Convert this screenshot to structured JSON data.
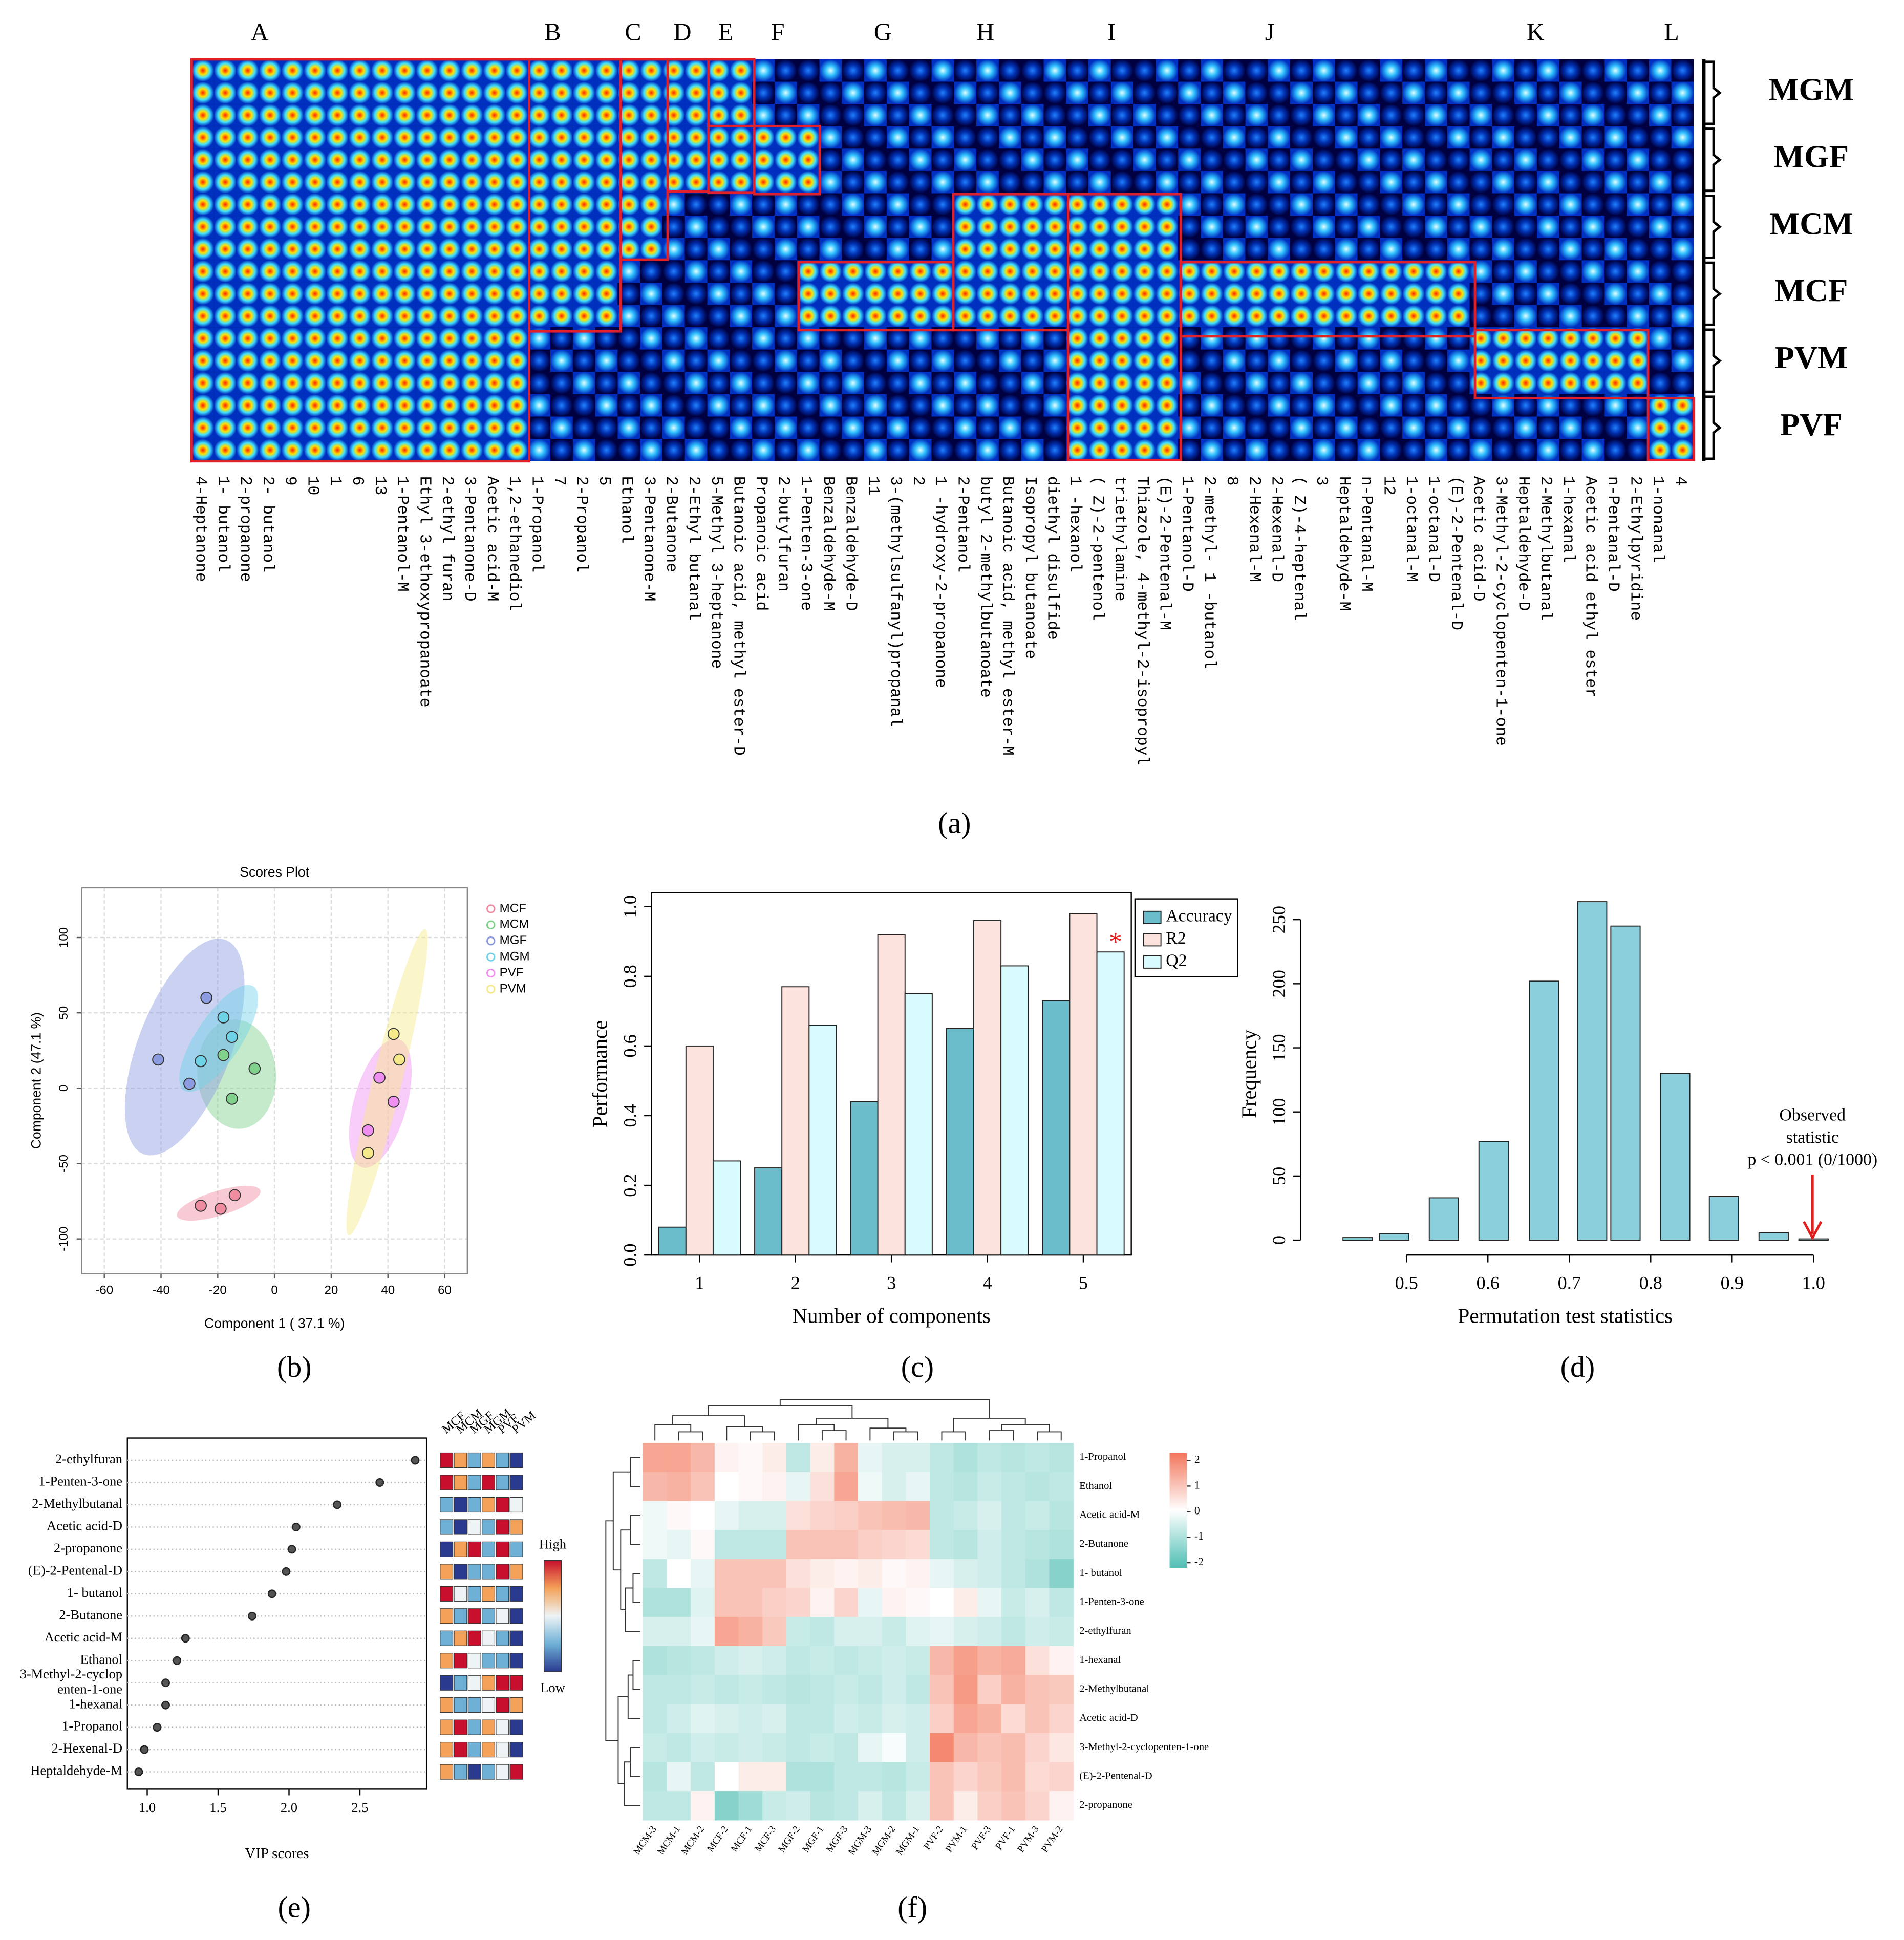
{
  "chart_data": [
    {
      "type": "gallery",
      "panel_label": "(a)",
      "group_letters": [
        "A",
        "B",
        "C",
        "D",
        "E",
        "F",
        "G",
        "H",
        "I",
        "J",
        "K",
        "L"
      ],
      "row_groups": [
        "MGM",
        "MGF",
        "MCM",
        "MCF",
        "PVM",
        "PVF"
      ],
      "columns": [
        "4-Heptanone",
        "1- butanol",
        "2-propanone",
        "2- butanol",
        "9",
        "10",
        "1",
        "6",
        "13",
        "1-Pentanol-M",
        "Ethyl 3-ethoxypropanoate",
        "2-ethyl furan",
        "3-Pentanone-D",
        "Acetic acid-M",
        "1,2-ethanediol",
        "1-Propanol",
        "7",
        "2-Propanol",
        "5",
        "Ethanol",
        "3-Pentanone-M",
        "2-Butanone",
        "2-Ethyl butanal",
        "5-Methyl 3-heptanone",
        "Butanoic acid, methyl ester-D",
        "Propanoic acid",
        "2-butylfuran",
        "1-Penten-3-one",
        "Benzaldehyde-M",
        "Benzaldehyde-D",
        "11",
        "3-(methylsulfanyl)propanal",
        "2",
        "1 -hydroxy-2-propanone",
        "2-Pentanol",
        "butyl 2-methylbutanoate",
        "Butanoic acid, methyl ester-M",
        "Isopropyl butanoate",
        "diethyl disulfide",
        "1 -hexanol",
        "( Z)-2-pentenol",
        "triethylamine",
        "Thiazole, 4-methyl-2-isopropyl",
        "(E)-2-Pentenal-M",
        "1-Pentanol-D",
        "2-methyl- 1 -butanol",
        "8",
        "2-Hexenal-M",
        "2-Hexenal-D",
        "( Z)-4-heptenal",
        "3",
        "Heptaldehyde-M",
        "n-Pentanal-M",
        "12",
        "1-octanal-M",
        "1-octanal-D",
        "(E)-2-Pentenal-D",
        "Acetic acid-D",
        "3-Methyl-2-cyclopenten-1-one",
        "Heptaldehyde-D",
        "2-Methylbutanal",
        "1-hexanal",
        "Acetic acid ethyl ester",
        "n-Pentanal-D",
        "2-Ethylpyridine",
        "1-nonanal",
        "4"
      ]
    },
    {
      "type": "scatter",
      "panel_label": "(b)",
      "title": "Scores Plot",
      "x_label": "Component 1 ( 37.1 %)",
      "y_label": "Component 2 (47.1 %)",
      "xlim": [
        -68,
        68
      ],
      "ylim": [
        -123,
        133
      ],
      "xticks": [
        -60,
        -40,
        -20,
        0,
        20,
        40,
        60
      ],
      "yticks": [
        -100,
        -50,
        0,
        50,
        100
      ],
      "grid": true,
      "series": [
        {
          "name": "MCF",
          "color": "#f08ca0",
          "x": [
            -26,
            -19,
            -14
          ],
          "values": [
            -78,
            -80,
            -71
          ]
        },
        {
          "name": "MCM",
          "color": "#7fd18c",
          "x": [
            -18,
            -7,
            -15
          ],
          "values": [
            22,
            13,
            -7
          ]
        },
        {
          "name": "MGF",
          "color": "#8c9be0",
          "x": [
            -41,
            -24,
            -30
          ],
          "values": [
            19,
            60,
            3
          ]
        },
        {
          "name": "MGM",
          "color": "#6fd3e8",
          "x": [
            -18,
            -15,
            -26
          ],
          "values": [
            47,
            34,
            18
          ]
        },
        {
          "name": "PVF",
          "color": "#ef8ff0",
          "x": [
            37,
            42,
            33
          ],
          "values": [
            7,
            -9,
            -28
          ]
        },
        {
          "name": "PVM",
          "color": "#f6e98a",
          "x": [
            42,
            44,
            33
          ],
          "values": [
            36,
            19,
            -43
          ]
        }
      ]
    },
    {
      "type": "bar",
      "panel_label": "(c)",
      "x_label": "Number of components",
      "y_label": "Performance",
      "categories": [
        "1",
        "2",
        "3",
        "4",
        "5"
      ],
      "ylim": [
        0,
        1.04
      ],
      "yticks": [
        {
          "value": 0,
          "label": "0.0"
        },
        0.2,
        0.4,
        0.6,
        0.8,
        {
          "value": 1,
          "label": "1.0"
        }
      ],
      "legend": "top-right",
      "annotation": "*",
      "series": [
        {
          "name": "Accuracy",
          "color": "#6bbdcc",
          "values": [
            0.08,
            0.25,
            0.44,
            0.65,
            0.73
          ]
        },
        {
          "name": "R2",
          "color": "#fde3de",
          "values": [
            0.6,
            0.77,
            0.92,
            0.96,
            0.98
          ]
        },
        {
          "name": "Q2",
          "color": "#d8fbfd",
          "values": [
            0.27,
            0.66,
            0.75,
            0.83,
            0.87
          ]
        }
      ]
    },
    {
      "type": "bar",
      "panel_label": "(d)",
      "x_label": "Permutation test statistics",
      "y_label": "Frequency",
      "x": [
        0.44,
        0.485,
        0.546,
        0.607,
        0.669,
        0.728,
        0.769,
        0.83,
        0.89,
        0.951,
        1.0
      ],
      "values": [
        2,
        5,
        33,
        77,
        202,
        264,
        245,
        130,
        34,
        6,
        1
      ],
      "color": "#8ccfdc",
      "xlim": [
        0.37,
        1.02
      ],
      "ylim": [
        -11.6,
        271
      ],
      "xticks": [
        0.5,
        0.6,
        0.7,
        0.8,
        0.9,
        {
          "value": 1,
          "label": "1.0"
        }
      ],
      "yticks": [
        0,
        50,
        100,
        150,
        200,
        250
      ],
      "annotation": [
        "Observed",
        "statistic",
        "p < 0.001 (0/1000)"
      ]
    },
    {
      "type": "dot",
      "panel_label": "(e)",
      "x_label": "VIP scores",
      "categories": [
        "2-ethylfuran",
        "1-Penten-3-one",
        "2-Methylbutanal",
        "Acetic acid-D",
        "2-propanone",
        "(E)-2-Pentenal-D",
        "1- butanol",
        "2-Butanone",
        "Acetic acid-M",
        "Ethanol",
        "3-Methyl-2-cyclop\nenten-1-one",
        "1-hexanal",
        "1-Propanol",
        "2-Hexenal-D",
        "Heptaldehyde-M"
      ],
      "values": [
        2.89,
        2.64,
        2.34,
        2.05,
        2.02,
        1.98,
        1.88,
        1.74,
        1.27,
        1.21,
        1.13,
        1.13,
        1.07,
        0.98,
        0.94
      ],
      "xlim": [
        0.86,
        2.97
      ],
      "xticks": [
        {
          "value": 1,
          "label": "1.0"
        },
        1.5,
        {
          "value": 2,
          "label": "2.0"
        },
        2.5
      ],
      "heat": {
        "columns": [
          "MCF",
          "MCM",
          "MGF",
          "MGM",
          "PVF",
          "PVM"
        ],
        "high": "High",
        "low": "Low",
        "values": [
          [
            4,
            3,
            1,
            3,
            1,
            0
          ],
          [
            4,
            3,
            1,
            4,
            1,
            0
          ],
          [
            1,
            0,
            1,
            3,
            4,
            2
          ],
          [
            1,
            0,
            2,
            1,
            4,
            3
          ],
          [
            0,
            3,
            4,
            1,
            4,
            1
          ],
          [
            3,
            0,
            1,
            1,
            4,
            3
          ],
          [
            4,
            2,
            1,
            3,
            1,
            0
          ],
          [
            3,
            1,
            4,
            1,
            2,
            0
          ],
          [
            1,
            3,
            4,
            2,
            1,
            0
          ],
          [
            3,
            4,
            2,
            1,
            1,
            0
          ],
          [
            0,
            1,
            2,
            3,
            4,
            4
          ],
          [
            3,
            1,
            1,
            2,
            4,
            3
          ],
          [
            3,
            4,
            1,
            3,
            2,
            0
          ],
          [
            3,
            4,
            1,
            3,
            2,
            0
          ],
          [
            3,
            1,
            0,
            1,
            2,
            4
          ]
        ]
      }
    },
    {
      "type": "heatmap",
      "panel_label": "(f)",
      "rows": [
        "1-Propanol",
        "Ethanol",
        "Acetic acid-M",
        "2-Butanone",
        "1- butanol",
        "1-Penten-3-one",
        "2-ethylfuran",
        "1-hexanal",
        "2-Methylbutanal",
        "Acetic acid-D",
        "3-Methyl-2-cyclopenten-1-one",
        "(E)-2-Pentenal-D",
        "2-propanone"
      ],
      "columns": [
        "MCM-3",
        "MCM-1",
        "MCM-2",
        "MCF-2",
        "MCF-1",
        "MCF-3",
        "MGF-2",
        "MGF-1",
        "MGF-3",
        "MGM-3",
        "MGM-2",
        "MGM-1",
        "PVF-2",
        "PVM-1",
        "PVF-3",
        "PVF-1",
        "PVM-3",
        "PVM-2"
      ],
      "zlim": [
        -2.2,
        2.3
      ],
      "zticks": [
        2,
        1,
        0,
        -1,
        -2
      ],
      "values": [
        [
          1.5,
          1.5,
          1.2,
          0.2,
          0.1,
          0.3,
          -0.8,
          0.3,
          1.3,
          -0.3,
          -0.5,
          -0.5,
          -0.8,
          -1.0,
          -0.8,
          -0.9,
          -0.8,
          -0.9
        ],
        [
          1.2,
          1.3,
          1.0,
          0.0,
          0.1,
          0.2,
          -0.3,
          0.5,
          1.5,
          -0.2,
          -0.5,
          -0.3,
          -0.8,
          -0.9,
          -0.7,
          -0.8,
          -0.9,
          -0.8
        ],
        [
          -0.2,
          0.1,
          0.0,
          -0.3,
          -0.5,
          -0.5,
          0.5,
          0.7,
          0.8,
          1.0,
          1.1,
          1.2,
          -0.8,
          -0.7,
          -0.5,
          -0.8,
          -0.7,
          -0.9
        ],
        [
          -0.2,
          -0.3,
          0.1,
          -0.8,
          -0.8,
          -0.8,
          1.0,
          1.0,
          1.0,
          0.8,
          0.7,
          0.6,
          -0.8,
          -0.9,
          -0.6,
          -0.8,
          -0.9,
          -1.0
        ],
        [
          -0.8,
          0.0,
          -0.3,
          1.0,
          1.0,
          1.0,
          0.5,
          0.3,
          0.2,
          0.3,
          0.1,
          0.2,
          -0.3,
          -0.5,
          -0.6,
          -0.8,
          -1.0,
          -1.5
        ],
        [
          -1.0,
          -1.0,
          -0.4,
          1.0,
          1.0,
          0.8,
          0.7,
          0.2,
          0.7,
          -0.3,
          0.2,
          0.1,
          0.0,
          0.3,
          -0.3,
          -0.7,
          -0.5,
          -0.8
        ],
        [
          -0.5,
          -0.5,
          -0.3,
          1.5,
          1.3,
          0.9,
          -0.7,
          -0.8,
          -0.5,
          -0.5,
          -0.7,
          -0.4,
          -0.3,
          -0.5,
          -0.6,
          -0.8,
          -0.6,
          -0.7
        ],
        [
          -1.0,
          -0.9,
          -0.8,
          -0.6,
          -0.5,
          -0.6,
          -0.8,
          -0.7,
          -0.8,
          -0.7,
          -0.6,
          -0.7,
          1.2,
          1.6,
          1.3,
          1.4,
          0.5,
          0.2
        ],
        [
          -0.8,
          -0.8,
          -0.7,
          -0.8,
          -0.7,
          -0.8,
          -0.9,
          -0.8,
          -0.7,
          -0.8,
          -0.6,
          -0.8,
          1.0,
          1.7,
          0.8,
          1.3,
          1.0,
          0.9
        ],
        [
          -0.8,
          -0.6,
          -0.4,
          -0.5,
          -0.6,
          -0.5,
          -0.8,
          -0.8,
          -0.6,
          -0.7,
          -0.5,
          -0.6,
          0.8,
          1.5,
          1.3,
          0.6,
          1.0,
          0.7
        ],
        [
          -0.7,
          -0.8,
          -0.6,
          -0.7,
          -0.6,
          -0.7,
          -0.8,
          -0.7,
          -0.8,
          -0.3,
          -0.1,
          -0.6,
          2.0,
          1.2,
          1.0,
          1.1,
          0.7,
          0.4
        ],
        [
          -0.9,
          -0.3,
          -0.8,
          0.0,
          0.3,
          0.3,
          -1.0,
          -1.0,
          -0.8,
          -0.8,
          -0.9,
          -0.7,
          1.0,
          0.7,
          0.9,
          1.1,
          0.6,
          0.7
        ],
        [
          -0.8,
          -0.8,
          0.2,
          -1.5,
          -1.2,
          -0.7,
          -0.6,
          -0.9,
          -0.8,
          -0.5,
          -0.8,
          -0.5,
          1.0,
          0.3,
          0.8,
          1.0,
          0.7,
          0.2
        ]
      ]
    }
  ]
}
